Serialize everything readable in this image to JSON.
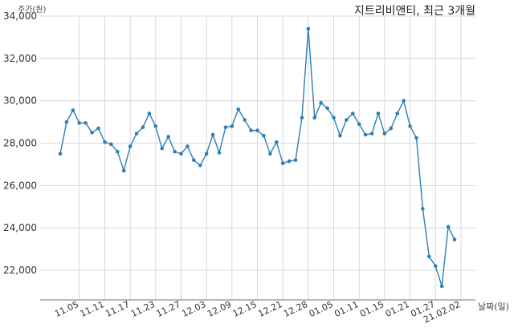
{
  "chart_data": {
    "type": "line",
    "title": "지트리비앤티, 최근 3개월",
    "ylabel": "주가(원)",
    "xlabel": "날짜(일)",
    "ylim": [
      20600,
      34000
    ],
    "yticks": [
      22000,
      24000,
      26000,
      28000,
      30000,
      32000,
      34000
    ],
    "ytick_labels": [
      "22,000",
      "24,000",
      "26,000",
      "28,000",
      "30,000",
      "32,000",
      "34,000"
    ],
    "xtick_labels": [
      "11.05",
      "11.11",
      "11.17",
      "11.23",
      "11.27",
      "12.03",
      "12.09",
      "12.15",
      "12.21",
      "12.28",
      "01.05",
      "01.11",
      "01.15",
      "01.21",
      "01.27",
      "21.02.02"
    ],
    "xtick_index": [
      3,
      7,
      11,
      15,
      19,
      23,
      27,
      31,
      35,
      39,
      43,
      47,
      51,
      55,
      59,
      63
    ],
    "grid": true,
    "line_color": "#2e7fb4",
    "values": [
      27500,
      29000,
      29550,
      28950,
      28950,
      28500,
      28700,
      28050,
      27950,
      27600,
      26700,
      27850,
      28450,
      28750,
      29400,
      28800,
      27750,
      28300,
      27600,
      27500,
      27850,
      27200,
      26950,
      27500,
      28400,
      27550,
      28750,
      28800,
      29600,
      29100,
      28600,
      28600,
      28350,
      27500,
      28050,
      27050,
      27150,
      27200,
      29200,
      33400,
      29200,
      29900,
      29650,
      29200,
      28350,
      29100,
      29400,
      28900,
      28400,
      28450,
      29400,
      28450,
      28700,
      29400,
      30000,
      28800,
      28250,
      24900,
      22650,
      22200,
      21250,
      24050,
      23450
    ]
  }
}
